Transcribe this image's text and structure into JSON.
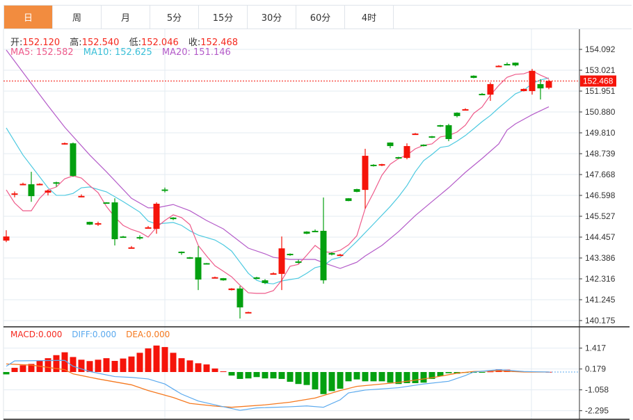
{
  "tabs": [
    {
      "label": "日",
      "active": true
    },
    {
      "label": "周"
    },
    {
      "label": "月"
    },
    {
      "label": "5分"
    },
    {
      "label": "15分"
    },
    {
      "label": "30分"
    },
    {
      "label": "60分"
    },
    {
      "label": "4时"
    }
  ],
  "ohlc": {
    "open_label": "开:",
    "open": "152.120",
    "high_label": "高:",
    "high": "152.540",
    "low_label": "低:",
    "low": "152.046",
    "close_label": "收:",
    "close": "152.468"
  },
  "ma": {
    "ma5_label": "MA5: 152.582",
    "ma10_label": "MA10: 152.625",
    "ma20_label": "MA20: 151.146"
  },
  "macd_info": {
    "macd_label": "MACD:0.000",
    "diff_label": "DIFF:0.000",
    "dea_label": "DEA:0.000"
  },
  "current_price": "152.468",
  "colors": {
    "up": "#f5140a",
    "down": "#04a010",
    "ma5": "#ee5a8a",
    "ma10": "#4cc9e0",
    "ma20": "#b45bc9",
    "diff": "#5aa9ee",
    "dea": "#f5781e",
    "accent": "#f28c3f"
  },
  "chart_data": [
    {
      "type": "candlestick",
      "ylim": [
        140.175,
        154.092
      ],
      "y_ticks": [
        "154.092",
        "153.021",
        "151.951",
        "150.880",
        "149.810",
        "148.739",
        "147.668",
        "146.598",
        "145.527",
        "144.457",
        "143.386",
        "142.316",
        "141.245",
        "140.175"
      ],
      "ohlc": [
        [
          144.28,
          144.81,
          144.2,
          144.49
        ],
        [
          146.63,
          146.8,
          146.5,
          146.7
        ],
        [
          147.15,
          147.25,
          147.12,
          147.19
        ],
        [
          147.17,
          147.81,
          146.27,
          146.56
        ],
        [
          147.15,
          147.22,
          147.12,
          147.19
        ],
        [
          146.74,
          146.9,
          146.6,
          146.85
        ],
        [
          147.27,
          147.3,
          147.05,
          147.2
        ],
        [
          149.24,
          149.31,
          149.2,
          149.28
        ],
        [
          149.27,
          149.31,
          147.55,
          147.6
        ],
        [
          146.53,
          146.65,
          146.5,
          146.57
        ],
        [
          145.24,
          145.25,
          145.08,
          145.1
        ],
        [
          145.1,
          145.25,
          145.03,
          145.17
        ],
        [
          146.24,
          146.25,
          146.18,
          146.2
        ],
        [
          146.24,
          146.45,
          144.03,
          144.35
        ],
        [
          144.49,
          144.52,
          144.43,
          144.46
        ],
        [
          143.9,
          144.0,
          143.87,
          143.93
        ],
        [
          144.46,
          144.55,
          144.33,
          144.42
        ],
        [
          144.92,
          145.03,
          144.9,
          144.96
        ],
        [
          144.88,
          146.24,
          144.63,
          146.17
        ],
        [
          146.9,
          147.0,
          146.75,
          146.88
        ],
        [
          145.46,
          145.48,
          145.33,
          145.38
        ],
        [
          143.71,
          143.72,
          143.55,
          143.64
        ],
        [
          143.42,
          143.44,
          143.34,
          143.39
        ],
        [
          143.42,
          143.99,
          141.74,
          142.28
        ],
        [
          143.12,
          143.13,
          143.09,
          143.1
        ],
        [
          142.37,
          142.43,
          142.34,
          142.4
        ],
        [
          142.35,
          142.36,
          142.22,
          142.24
        ],
        [
          141.74,
          141.84,
          141.72,
          141.82
        ],
        [
          141.82,
          141.95,
          140.28,
          140.85
        ],
        [
          140.58,
          140.63,
          140.56,
          140.61
        ],
        [
          142.39,
          142.42,
          142.3,
          142.31
        ],
        [
          142.24,
          142.3,
          142.05,
          142.1
        ],
        [
          142.57,
          142.65,
          142.53,
          142.6
        ],
        [
          142.57,
          144.49,
          141.74,
          143.88
        ],
        [
          143.6,
          143.62,
          143.5,
          143.56
        ],
        [
          143.21,
          143.3,
          143.1,
          143.14
        ],
        [
          144.74,
          144.76,
          144.61,
          144.63
        ],
        [
          144.78,
          144.85,
          144.72,
          144.74
        ],
        [
          144.78,
          146.49,
          142.07,
          142.24
        ],
        [
          143.64,
          143.68,
          143.52,
          143.56
        ],
        [
          143.53,
          143.6,
          143.5,
          143.56
        ],
        [
          146.45,
          146.46,
          146.3,
          146.31
        ],
        [
          146.92,
          146.94,
          146.76,
          146.78
        ],
        [
          146.88,
          148.99,
          145.92,
          148.63
        ],
        [
          148.17,
          148.2,
          148.08,
          148.1
        ],
        [
          148.13,
          148.22,
          148.1,
          148.2
        ],
        [
          149.31,
          149.32,
          149.02,
          149.13
        ],
        [
          148.56,
          148.58,
          148.47,
          148.49
        ],
        [
          148.52,
          149.27,
          148.45,
          149.13
        ],
        [
          149.74,
          149.8,
          149.72,
          149.77
        ],
        [
          149.2,
          149.22,
          149.11,
          149.13
        ],
        [
          149.63,
          149.65,
          149.54,
          149.56
        ],
        [
          150.2,
          150.22,
          150.11,
          150.13
        ],
        [
          150.2,
          150.27,
          149.38,
          149.49
        ],
        [
          150.84,
          150.86,
          150.6,
          150.67
        ],
        [
          150.99,
          151.07,
          150.97,
          151.02
        ],
        [
          152.74,
          152.76,
          152.61,
          152.63
        ],
        [
          151.81,
          151.85,
          151.75,
          151.77
        ],
        [
          151.77,
          152.4,
          151.45,
          152.31
        ],
        [
          153.22,
          153.28,
          153.2,
          153.25
        ],
        [
          153.34,
          153.42,
          153.29,
          153.31
        ],
        [
          153.41,
          153.42,
          153.22,
          153.27
        ],
        [
          151.95,
          152.09,
          151.93,
          152.06
        ],
        [
          151.95,
          153.09,
          151.77,
          152.99
        ],
        [
          152.31,
          152.56,
          151.52,
          152.09
        ],
        [
          152.12,
          152.54,
          152.046,
          152.468
        ]
      ],
      "ma5": [
        146.88,
        146.21,
        145.81,
        145.81,
        146.45,
        146.88,
        147.03,
        147.45,
        147.6,
        147.49,
        147.1,
        146.74,
        146.03,
        145.49,
        145.06,
        144.85,
        144.71,
        144.46,
        144.96,
        145.31,
        145.6,
        145.46,
        145.1,
        144.03,
        143.49,
        142.99,
        142.71,
        142.42,
        141.99,
        141.6,
        141.57,
        141.57,
        141.71,
        142.24,
        142.96,
        143.06,
        143.53,
        144.03,
        143.71,
        143.67,
        143.78,
        144.06,
        144.53,
        145.92,
        146.74,
        147.63,
        148.2,
        148.49,
        148.67,
        148.99,
        149.17,
        149.24,
        149.6,
        149.67,
        149.85,
        150.2,
        150.81,
        151.13,
        151.74,
        152.24,
        152.66,
        152.81,
        152.84,
        152.99,
        152.77,
        152.582
      ],
      "ma10": [
        [
          0,
          150.06
        ],
        [
          2,
          148.67
        ],
        [
          5,
          146.99
        ],
        [
          6,
          146.6
        ],
        [
          7,
          146.6
        ],
        [
          8,
          146.7
        ],
        [
          9,
          146.99
        ],
        [
          10,
          147.03
        ],
        [
          12,
          146.78
        ],
        [
          14,
          146.28
        ],
        [
          16,
          145.74
        ],
        [
          17,
          145.28
        ],
        [
          18,
          145.13
        ],
        [
          20,
          145.21
        ],
        [
          21,
          145.06
        ],
        [
          22,
          144.78
        ],
        [
          23,
          144.56
        ],
        [
          25,
          144.31
        ],
        [
          26,
          144.06
        ],
        [
          27,
          143.74
        ],
        [
          28,
          143.17
        ],
        [
          29,
          142.6
        ],
        [
          30,
          142.24
        ],
        [
          31,
          142.1
        ],
        [
          32,
          142.06
        ],
        [
          33,
          142.21
        ],
        [
          35,
          142.35
        ],
        [
          36,
          142.6
        ],
        [
          37,
          142.89
        ],
        [
          38,
          142.99
        ],
        [
          39,
          143.31
        ],
        [
          40,
          143.42
        ],
        [
          42,
          144.24
        ],
        [
          44,
          145.13
        ],
        [
          46,
          146.03
        ],
        [
          47,
          146.53
        ],
        [
          48,
          147.1
        ],
        [
          49,
          147.81
        ],
        [
          50,
          148.38
        ],
        [
          51,
          148.7
        ],
        [
          52,
          149.06
        ],
        [
          53,
          149.13
        ],
        [
          54,
          149.38
        ],
        [
          55,
          149.67
        ],
        [
          56,
          150.02
        ],
        [
          57,
          150.38
        ],
        [
          58,
          150.7
        ],
        [
          59,
          151.09
        ],
        [
          60,
          151.45
        ],
        [
          61,
          151.81
        ],
        [
          62,
          151.99
        ],
        [
          63,
          152.34
        ],
        [
          64,
          152.52
        ],
        [
          65,
          152.625
        ]
      ],
      "ma20": [
        [
          0,
          154.06
        ],
        [
          3,
          152.34
        ],
        [
          5,
          151.2
        ],
        [
          7,
          150.1
        ],
        [
          10,
          148.67
        ],
        [
          12,
          147.81
        ],
        [
          15,
          146.45
        ],
        [
          17,
          145.96
        ],
        [
          18,
          145.96
        ],
        [
          20,
          146.13
        ],
        [
          22,
          145.81
        ],
        [
          24,
          145.31
        ],
        [
          26,
          144.88
        ],
        [
          29,
          143.89
        ],
        [
          31,
          143.6
        ],
        [
          32,
          143.42
        ],
        [
          34,
          143.31
        ],
        [
          35,
          143.31
        ],
        [
          37,
          143.31
        ],
        [
          38,
          143.14
        ],
        [
          40,
          142.85
        ],
        [
          42,
          143.17
        ],
        [
          43,
          143.49
        ],
        [
          45,
          144.03
        ],
        [
          47,
          144.74
        ],
        [
          49,
          145.56
        ],
        [
          51,
          146.28
        ],
        [
          53,
          146.99
        ],
        [
          55,
          147.78
        ],
        [
          57,
          148.49
        ],
        [
          59,
          149.24
        ],
        [
          60,
          149.95
        ],
        [
          61,
          150.27
        ],
        [
          63,
          150.74
        ],
        [
          65,
          151.146
        ]
      ]
    },
    {
      "type": "bar",
      "title": "MACD",
      "y_ticks": [
        "1.417",
        "0.179",
        "-1.058",
        "-2.295"
      ],
      "histogram": [
        -0.14,
        0.25,
        0.4,
        0.48,
        0.66,
        0.82,
        1.0,
        1.17,
        0.89,
        0.73,
        0.65,
        0.73,
        0.82,
        0.66,
        0.8,
        0.92,
        1.14,
        1.4,
        1.57,
        1.48,
        1.14,
        0.82,
        0.69,
        0.52,
        0.45,
        0.21,
        0.04,
        -0.21,
        -0.41,
        -0.38,
        -0.3,
        -0.38,
        -0.38,
        -0.41,
        -0.58,
        -0.71,
        -0.77,
        -1.03,
        -1.31,
        -1.13,
        -0.99,
        -0.55,
        -0.44,
        -0.55,
        -0.55,
        -0.55,
        -0.63,
        -0.71,
        -0.66,
        -0.66,
        -0.63,
        -0.41,
        -0.25,
        -0.07,
        -0.1,
        -0.05,
        -0.03,
        -0.02,
        0.03,
        0.16,
        0.14,
        0.08,
        0.03,
        0.02,
        0.02,
        0.01
      ],
      "diff": [
        [
          0,
          0.34
        ],
        [
          1,
          0.66
        ],
        [
          7,
          0.69
        ],
        [
          8,
          0.34
        ],
        [
          10,
          0.03
        ],
        [
          13,
          -0.27
        ],
        [
          15,
          -0.32
        ],
        [
          17,
          -0.41
        ],
        [
          19,
          -0.71
        ],
        [
          21,
          -1.31
        ],
        [
          23,
          -1.72
        ],
        [
          26,
          -2.06
        ],
        [
          28,
          -2.27
        ],
        [
          30,
          -2.13
        ],
        [
          34,
          -2.06
        ],
        [
          36,
          -2.01
        ],
        [
          38,
          -2.09
        ],
        [
          40,
          -1.65
        ],
        [
          41,
          -1.24
        ],
        [
          43,
          -1.07
        ],
        [
          47,
          -0.93
        ],
        [
          50,
          -0.71
        ],
        [
          53,
          -0.55
        ],
        [
          55,
          -0.21
        ],
        [
          56,
          0
        ],
        [
          59,
          0.14
        ],
        [
          62,
          0.03
        ],
        [
          65,
          0
        ]
      ],
      "dea": [
        [
          0,
          0.48
        ],
        [
          3,
          0.41
        ],
        [
          7,
          0.14
        ],
        [
          8,
          -0.11
        ],
        [
          11,
          -0.41
        ],
        [
          15,
          -0.76
        ],
        [
          17,
          -1.1
        ],
        [
          20,
          -1.51
        ],
        [
          22,
          -1.86
        ],
        [
          25,
          -2.02
        ],
        [
          27,
          -2.09
        ],
        [
          31,
          -1.95
        ],
        [
          34,
          -1.79
        ],
        [
          37,
          -1.54
        ],
        [
          40,
          -1.1
        ],
        [
          42,
          -0.85
        ],
        [
          47,
          -0.62
        ],
        [
          51,
          -0.34
        ],
        [
          54,
          -0.07
        ],
        [
          56,
          0.03
        ],
        [
          59,
          0.07
        ],
        [
          62,
          0
        ],
        [
          65,
          0
        ]
      ]
    }
  ]
}
